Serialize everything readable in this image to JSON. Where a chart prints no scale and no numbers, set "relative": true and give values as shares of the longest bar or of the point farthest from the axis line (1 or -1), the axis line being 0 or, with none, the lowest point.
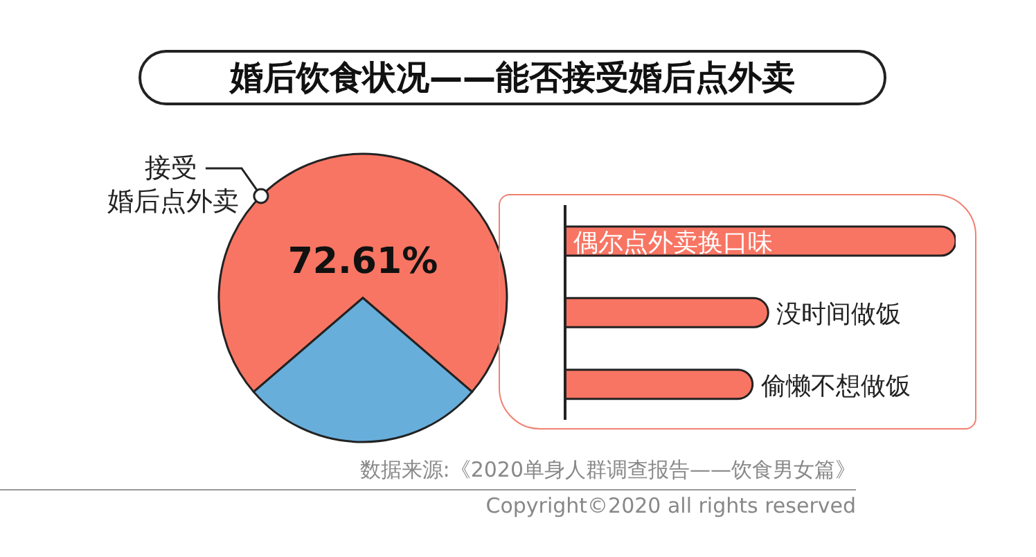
{
  "chart_data": [
    {
      "type": "pie",
      "title": "婚后饮食状况——能否接受婚后点外卖",
      "categories": [
        "接受婚后点外卖",
        null
      ],
      "values": [
        72.61,
        27.39
      ],
      "colors": [
        "#f87563",
        "#67aedb"
      ],
      "value_labels": [
        "72.61%",
        null
      ],
      "annotations": [
        "数据来源:《2020单身人群调查报告——饮食男女篇》",
        "Copyright©2020 all rights reserved"
      ]
    },
    {
      "type": "bar",
      "orientation": "horizontal",
      "relative": true,
      "categories": [
        "偶尔点外卖换口味",
        "没时间做饭",
        "偷懒不想做饭"
      ],
      "values": [
        1,
        0.52,
        0.48
      ],
      "color": "#f87563"
    }
  ]
}
